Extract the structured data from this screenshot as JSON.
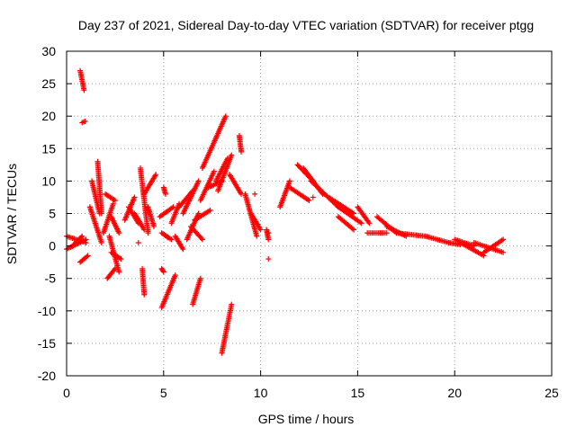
{
  "chart_data": {
    "type": "scatter",
    "title": "Day 237 of 2021, Sidereal Day-to-day VTEC variation (SDTVAR) for receiver ptgg",
    "xlabel": "GPS time / hours",
    "ylabel": "SDTVAR / TECUs",
    "xlim": [
      0,
      25
    ],
    "ylim": [
      -20,
      30
    ],
    "xticks": [
      0,
      5,
      10,
      15,
      20,
      25
    ],
    "yticks": [
      -20,
      -15,
      -10,
      -5,
      0,
      5,
      10,
      15,
      20,
      25,
      30
    ],
    "grid": true,
    "marker": "+",
    "series": [
      {
        "name": "SDTVAR",
        "color": "#ff0000",
        "arcs": [
          {
            "x0": 0.0,
            "y0": 1.5,
            "x1": 1.0,
            "y1": 0.5
          },
          {
            "x0": 0.0,
            "y0": -0.5,
            "x1": 1.0,
            "y1": 1.0
          },
          {
            "x0": 0.3,
            "y0": 0.0,
            "x1": 0.8,
            "y1": 1.5
          },
          {
            "x0": 0.7,
            "y0": 27.0,
            "x1": 0.9,
            "y1": 24.0
          },
          {
            "x0": 0.8,
            "y0": 19.0,
            "x1": 0.95,
            "y1": 19.2
          },
          {
            "x0": 0.7,
            "y0": -2.5,
            "x1": 1.1,
            "y1": -1.5
          },
          {
            "x0": 1.2,
            "y0": 6.0,
            "x1": 1.8,
            "y1": 0.5
          },
          {
            "x0": 1.3,
            "y0": 10.0,
            "x1": 1.7,
            "y1": 5.0
          },
          {
            "x0": 1.6,
            "y0": 13.0,
            "x1": 1.8,
            "y1": 5.0
          },
          {
            "x0": 1.9,
            "y0": 2.0,
            "x1": 2.4,
            "y1": 6.5
          },
          {
            "x0": 2.0,
            "y0": 8.0,
            "x1": 2.5,
            "y1": 7.0
          },
          {
            "x0": 2.3,
            "y0": 4.5,
            "x1": 2.7,
            "y1": 2.0
          },
          {
            "x0": 2.2,
            "y0": 1.5,
            "x1": 2.7,
            "y1": -4.0
          },
          {
            "x0": 2.3,
            "y0": -1.0,
            "x1": 2.8,
            "y1": -2.0
          },
          {
            "x0": 2.1,
            "y0": -5.0,
            "x1": 2.5,
            "y1": -3.5
          },
          {
            "x0": 3.0,
            "y0": 4.0,
            "x1": 3.5,
            "y1": 7.5
          },
          {
            "x0": 3.2,
            "y0": 6.0,
            "x1": 3.7,
            "y1": 3.5
          },
          {
            "x0": 3.5,
            "y0": 5.0,
            "x1": 4.0,
            "y1": 2.5
          },
          {
            "x0": 3.8,
            "y0": 12.0,
            "x1": 4.2,
            "y1": 2.0
          },
          {
            "x0": 4.0,
            "y0": 8.0,
            "x1": 4.6,
            "y1": 11.0
          },
          {
            "x0": 3.9,
            "y0": -3.5,
            "x1": 4.0,
            "y1": -7.5
          },
          {
            "x0": 4.2,
            "y0": 6.0,
            "x1": 4.5,
            "y1": 3.0
          },
          {
            "x0": 4.8,
            "y0": 4.5,
            "x1": 5.5,
            "y1": 6.0
          },
          {
            "x0": 4.9,
            "y0": 2.0,
            "x1": 5.4,
            "y1": 1.0
          },
          {
            "x0": 5.0,
            "y0": 9.0,
            "x1": 5.1,
            "y1": 8.0
          },
          {
            "x0": 4.9,
            "y0": -3.5,
            "x1": 5.0,
            "y1": -4.0
          },
          {
            "x0": 4.9,
            "y0": -9.5,
            "x1": 5.6,
            "y1": -4.5
          },
          {
            "x0": 5.4,
            "y0": 3.5,
            "x1": 5.8,
            "y1": 6.5
          },
          {
            "x0": 5.6,
            "y0": 1.5,
            "x1": 6.0,
            "y1": -0.5
          },
          {
            "x0": 5.8,
            "y0": 6.0,
            "x1": 6.5,
            "y1": 8.5
          },
          {
            "x0": 6.0,
            "y0": 5.0,
            "x1": 6.8,
            "y1": 10.0
          },
          {
            "x0": 6.2,
            "y0": 1.0,
            "x1": 6.8,
            "y1": 5.0
          },
          {
            "x0": 6.4,
            "y0": 3.0,
            "x1": 7.0,
            "y1": 1.0
          },
          {
            "x0": 6.6,
            "y0": 4.0,
            "x1": 7.4,
            "y1": 5.5
          },
          {
            "x0": 6.5,
            "y0": -9.0,
            "x1": 6.9,
            "y1": -5.0
          },
          {
            "x0": 6.9,
            "y0": 7.0,
            "x1": 7.6,
            "y1": 11.5
          },
          {
            "x0": 7.0,
            "y0": 12.0,
            "x1": 8.2,
            "y1": 20.0
          },
          {
            "x0": 7.3,
            "y0": 9.0,
            "x1": 8.0,
            "y1": 10.0
          },
          {
            "x0": 7.8,
            "y0": 8.5,
            "x1": 8.5,
            "y1": 14.0
          },
          {
            "x0": 7.7,
            "y0": 10.0,
            "x1": 8.3,
            "y1": 13.5
          },
          {
            "x0": 8.0,
            "y0": -16.5,
            "x1": 8.5,
            "y1": -9.0
          },
          {
            "x0": 8.4,
            "y0": 11.0,
            "x1": 9.0,
            "y1": 8.0
          },
          {
            "x0": 8.9,
            "y0": 17.0,
            "x1": 9.0,
            "y1": 14.5
          },
          {
            "x0": 9.2,
            "y0": 8.0,
            "x1": 9.8,
            "y1": 1.5
          },
          {
            "x0": 9.5,
            "y0": 5.0,
            "x1": 10.0,
            "y1": 2.5
          },
          {
            "x0": 10.3,
            "y0": 2.5,
            "x1": 10.4,
            "y1": 1.0
          },
          {
            "x0": 11.0,
            "y0": 6.0,
            "x1": 11.5,
            "y1": 10.0
          },
          {
            "x0": 11.5,
            "y0": 9.0,
            "x1": 12.5,
            "y1": 7.0
          },
          {
            "x0": 11.9,
            "y0": 12.5,
            "x1": 12.7,
            "y1": 10.0
          },
          {
            "x0": 12.2,
            "y0": 12.0,
            "x1": 13.2,
            "y1": 8.0
          },
          {
            "x0": 12.6,
            "y0": 10.0,
            "x1": 14.0,
            "y1": 6.0
          },
          {
            "x0": 13.5,
            "y0": 7.5,
            "x1": 14.8,
            "y1": 5.0
          },
          {
            "x0": 14.0,
            "y0": 6.0,
            "x1": 15.2,
            "y1": 3.5
          },
          {
            "x0": 14.0,
            "y0": 4.5,
            "x1": 14.8,
            "y1": 2.5
          },
          {
            "x0": 15.0,
            "y0": 6.0,
            "x1": 15.6,
            "y1": 3.5
          },
          {
            "x0": 15.5,
            "y0": 2.0,
            "x1": 16.5,
            "y1": 2.0
          },
          {
            "x0": 16.0,
            "y0": 4.5,
            "x1": 17.0,
            "y1": 2.0
          },
          {
            "x0": 16.5,
            "y0": 3.0,
            "x1": 17.5,
            "y1": 1.5
          },
          {
            "x0": 17.0,
            "y0": 2.0,
            "x1": 18.5,
            "y1": 1.5
          },
          {
            "x0": 18.5,
            "y0": 1.5,
            "x1": 19.7,
            "y1": 0.5
          },
          {
            "x0": 19.7,
            "y0": 0.5,
            "x1": 20.3,
            "y1": 0.2
          },
          {
            "x0": 20.0,
            "y0": 1.0,
            "x1": 21.0,
            "y1": 0.0
          },
          {
            "x0": 20.3,
            "y0": 0.5,
            "x1": 21.5,
            "y1": -1.5
          },
          {
            "x0": 21.0,
            "y0": 0.5,
            "x1": 22.5,
            "y1": -1.0
          },
          {
            "x0": 21.5,
            "y0": -1.0,
            "x1": 22.5,
            "y1": 1.0
          }
        ],
        "points": [
          [
            10.4,
            2.0
          ],
          [
            10.4,
            -2.0
          ],
          [
            5.2,
            1.3
          ],
          [
            3.7,
            0.5
          ],
          [
            9.7,
            8.0
          ],
          [
            12.7,
            7.5
          ]
        ]
      }
    ]
  }
}
